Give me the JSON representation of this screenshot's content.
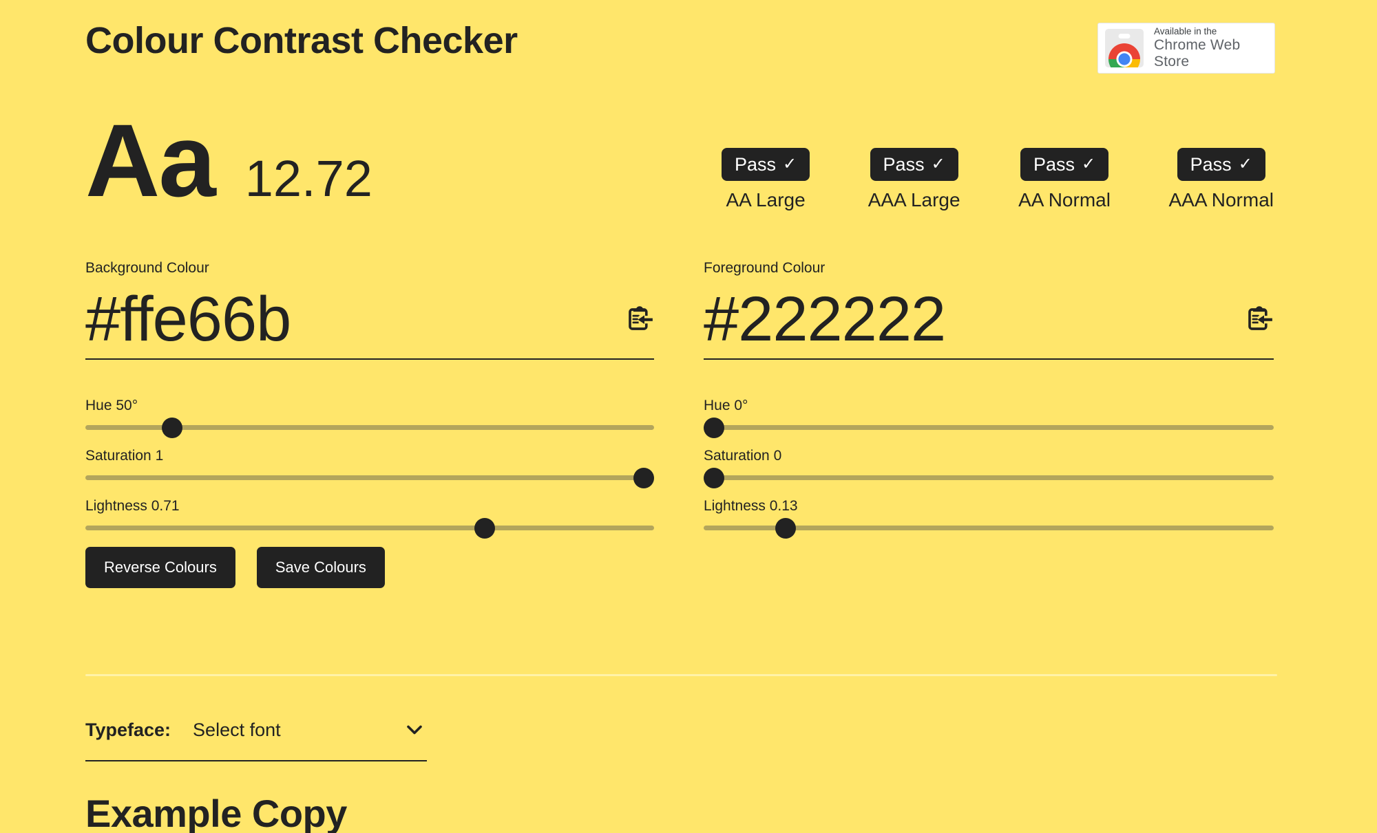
{
  "page": {
    "title": "Colour Contrast Checker"
  },
  "store_badge": {
    "line1": "Available in the",
    "line2": "Chrome Web Store"
  },
  "preview": {
    "sample_text": "Aa",
    "contrast_ratio": "12.72"
  },
  "results": [
    {
      "status": "Pass",
      "check": "✓",
      "label": "AA Large"
    },
    {
      "status": "Pass",
      "check": "✓",
      "label": "AAA Large"
    },
    {
      "status": "Pass",
      "check": "✓",
      "label": "AA Normal"
    },
    {
      "status": "Pass",
      "check": "✓",
      "label": "AAA Normal"
    }
  ],
  "background_colour": {
    "label": "Background Colour",
    "value": "#ffe66b",
    "sliders": [
      {
        "label": "Hue 50°",
        "fraction": 0.139
      },
      {
        "label": "Saturation 1",
        "fraction": 1
      },
      {
        "label": "Lightness 0.71",
        "fraction": 0.71
      }
    ]
  },
  "foreground_colour": {
    "label": "Foreground Colour",
    "value": "#222222",
    "sliders": [
      {
        "label": "Hue 0°",
        "fraction": 0
      },
      {
        "label": "Saturation 0",
        "fraction": 0
      },
      {
        "label": "Lightness 0.13",
        "fraction": 0.13
      }
    ]
  },
  "actions": {
    "reverse": "Reverse Colours",
    "save": "Save Colours"
  },
  "typeface": {
    "label": "Typeface:",
    "selected": "Select font"
  },
  "example": {
    "heading": "Example Copy"
  },
  "icons": {
    "paste": "clipboard-paste-icon",
    "chevron": "chevron-down-icon",
    "store": "chrome-web-store-icon"
  },
  "colors": {
    "background": "#ffe66b",
    "ink": "#222222",
    "slider-track": "#b3a55c",
    "divider": "#fff2a8",
    "card-bg": "#ffffff",
    "store-text": "#5f6368",
    "badge-text": "#ffffff"
  }
}
